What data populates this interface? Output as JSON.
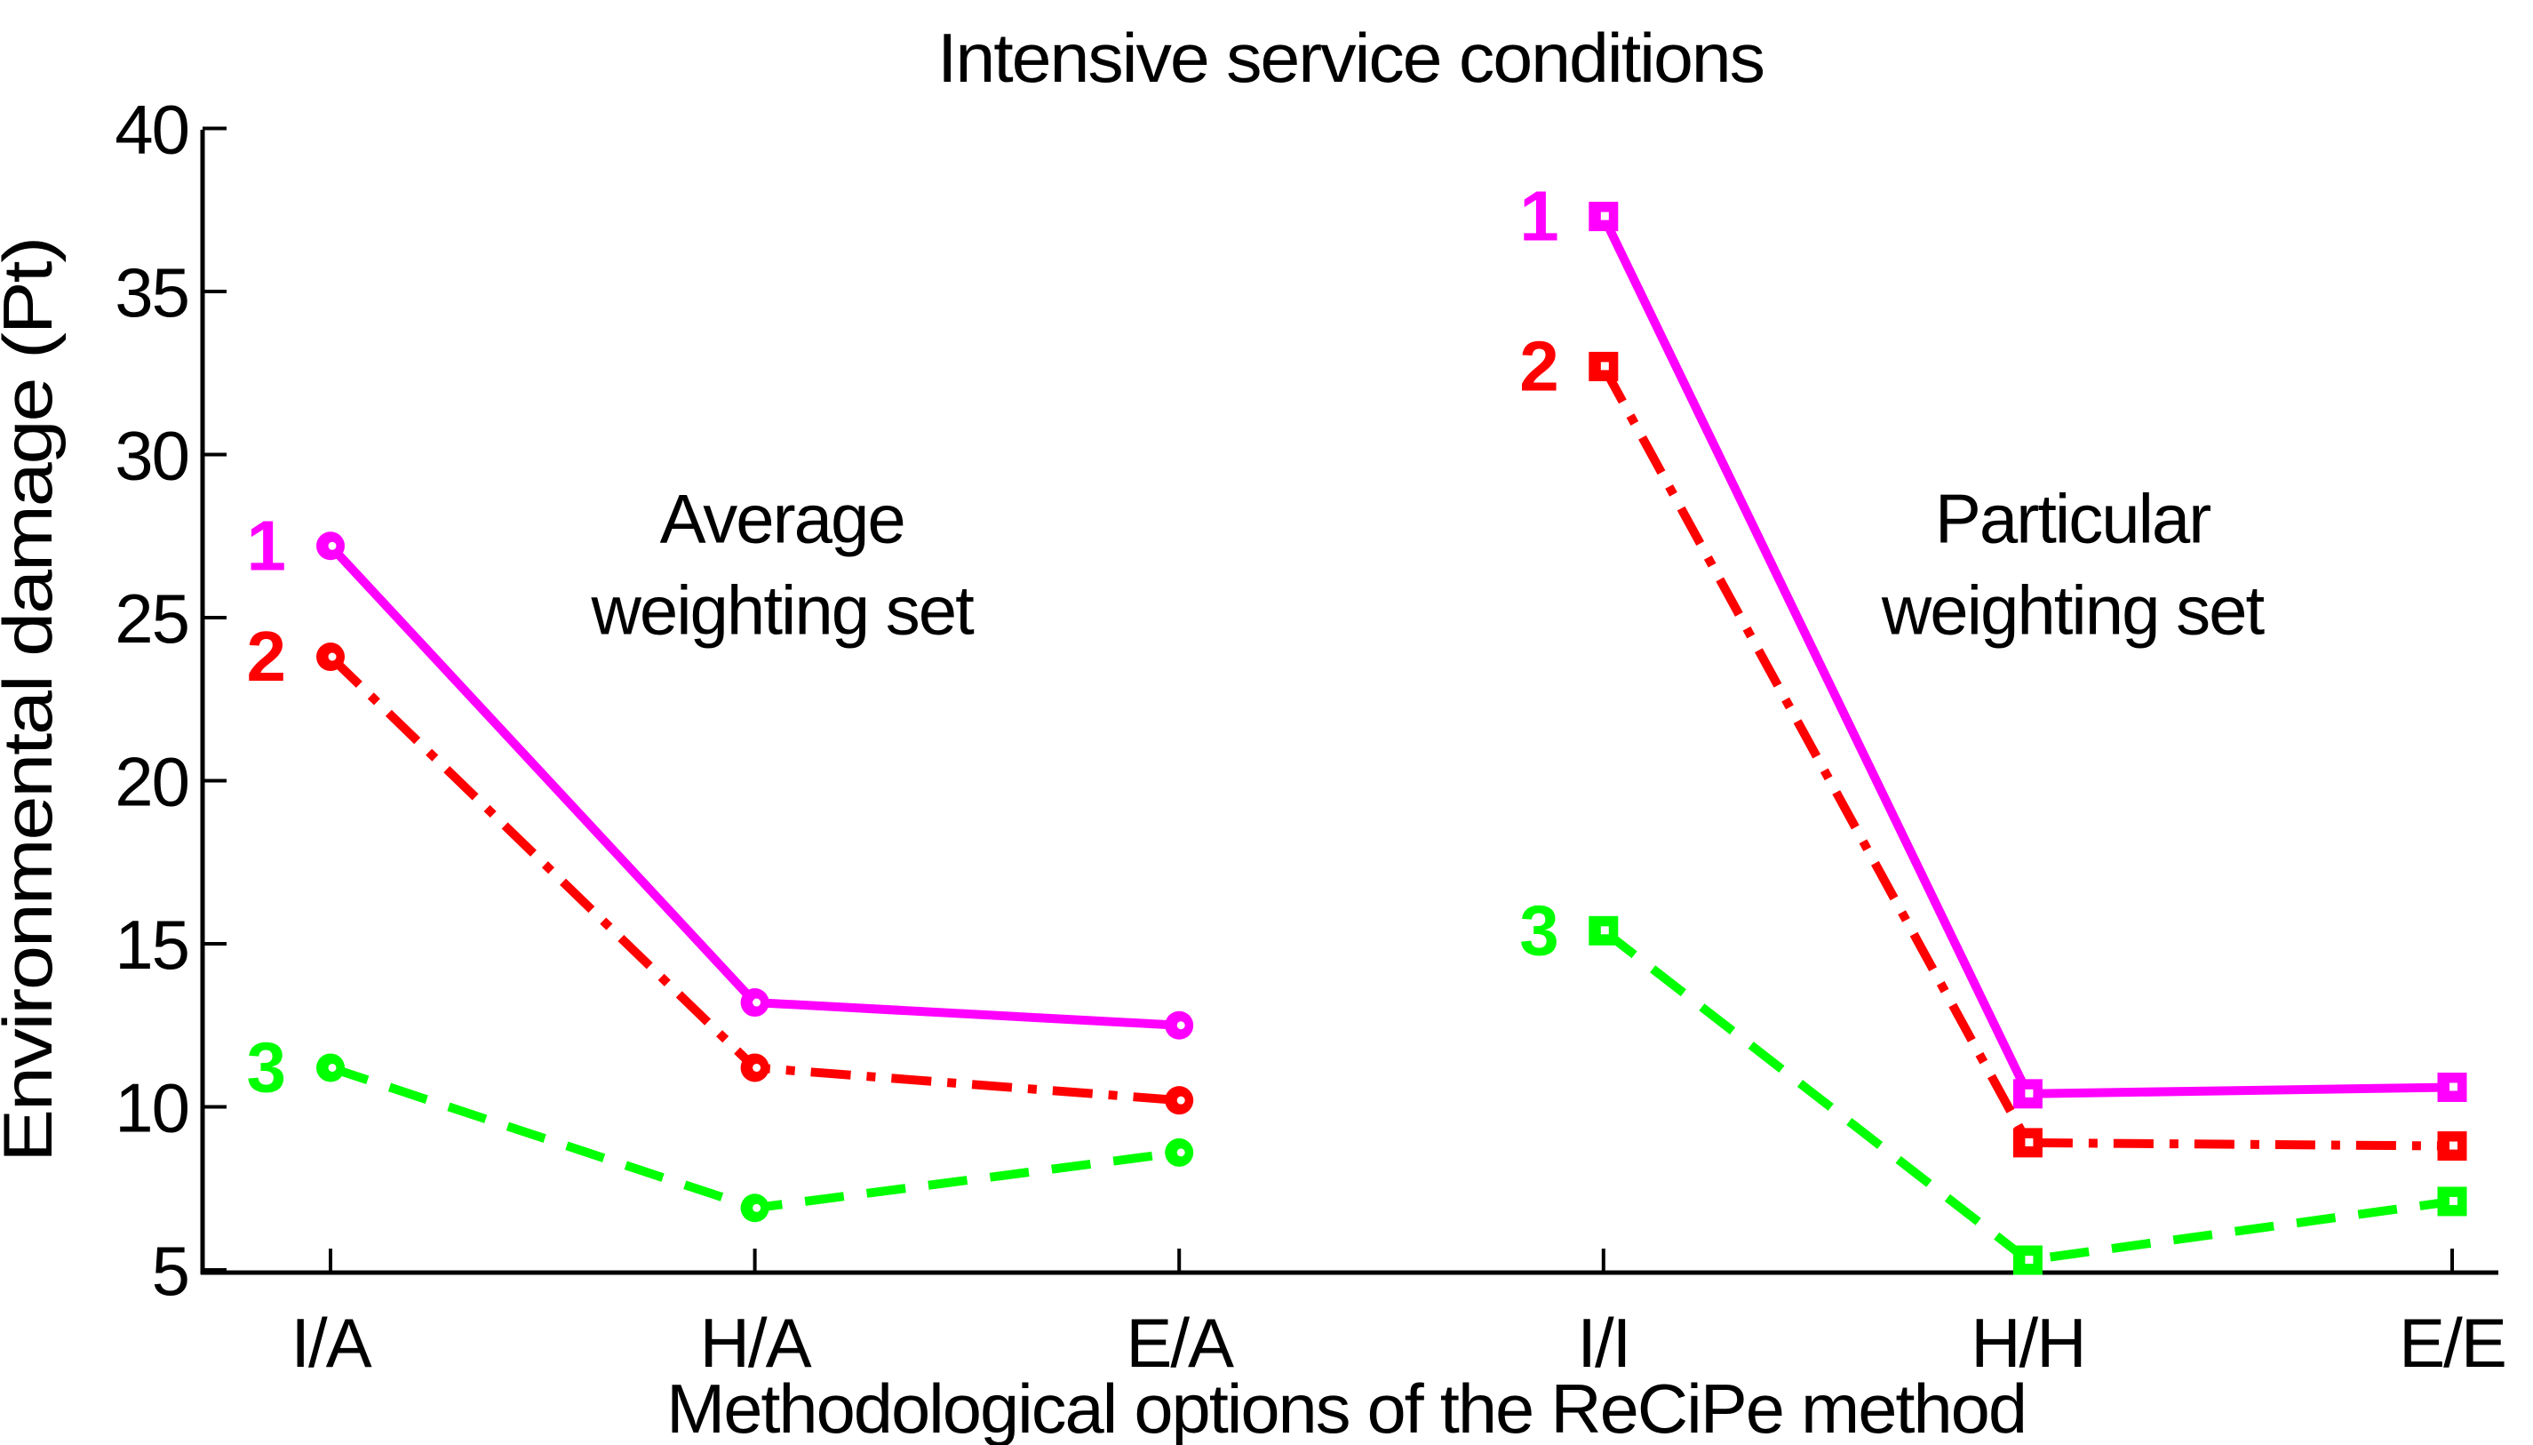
{
  "chart_data": {
    "type": "line",
    "title": "Intensive service conditions",
    "xlabel": "Methodological options of the ReCiPe method",
    "ylabel": "Environmental damage (Pt)",
    "ylim": [
      5,
      40
    ],
    "yticks": [
      5,
      10,
      15,
      20,
      25,
      30,
      35,
      40
    ],
    "categories": [
      "I/A",
      "H/A",
      "E/A",
      "I/I",
      "H/H",
      "E/E"
    ],
    "grid": false,
    "legend_position": "none",
    "axis_color": "#000000",
    "background_color": "#ffffff",
    "groups": [
      {
        "id": "average-weighting-set",
        "label_lines": [
          "Average",
          "weighting set"
        ],
        "x_center_category_units": 1.064,
        "y_center_value": 26.6
      },
      {
        "id": "particular-weighting-set",
        "label_lines": [
          "Particular",
          "weighting set"
        ],
        "x_center_category_units": 4.105,
        "y_center_value": 26.6
      }
    ],
    "series": [
      {
        "label": "1",
        "weighting_set": "Average",
        "color": "#ff00ff",
        "line_style": "solid",
        "marker": "circle",
        "categories": [
          "I/A",
          "H/A",
          "E/A"
        ],
        "values": [
          27.2,
          13.2,
          12.5
        ]
      },
      {
        "label": "2",
        "weighting_set": "Average",
        "color": "#ff0000",
        "line_style": "dash-dot",
        "marker": "circle",
        "categories": [
          "I/A",
          "H/A",
          "E/A"
        ],
        "values": [
          23.8,
          11.2,
          10.2
        ]
      },
      {
        "label": "3",
        "weighting_set": "Average",
        "color": "#00ff00",
        "line_style": "dashed",
        "marker": "circle",
        "categories": [
          "I/A",
          "H/A",
          "E/A"
        ],
        "values": [
          11.2,
          6.9,
          8.6
        ]
      },
      {
        "label": "1",
        "weighting_set": "Particular",
        "color": "#ff00ff",
        "line_style": "solid",
        "marker": "square",
        "categories": [
          "I/I",
          "H/H",
          "E/E"
        ],
        "values": [
          37.3,
          10.4,
          10.6
        ]
      },
      {
        "label": "2",
        "weighting_set": "Particular",
        "color": "#ff0000",
        "line_style": "dash-dot",
        "marker": "square",
        "categories": [
          "I/I",
          "H/H",
          "E/E"
        ],
        "values": [
          32.7,
          8.9,
          8.8
        ]
      },
      {
        "label": "3",
        "weighting_set": "Particular",
        "color": "#00ff00",
        "line_style": "dashed",
        "marker": "square",
        "categories": [
          "I/I",
          "H/H",
          "E/E"
        ],
        "values": [
          15.4,
          5.3,
          7.1
        ]
      }
    ]
  }
}
